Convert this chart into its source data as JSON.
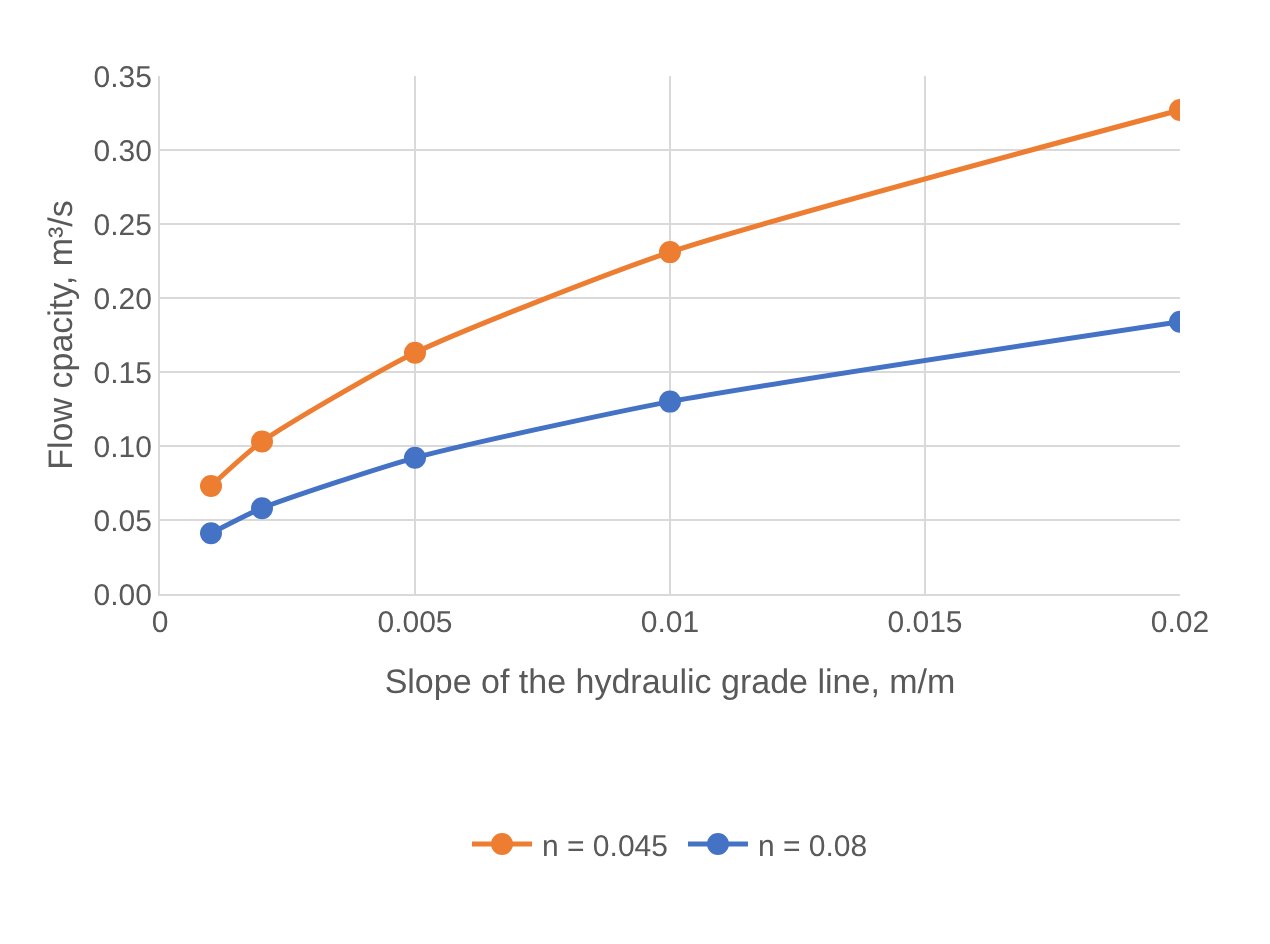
{
  "chart_data": {
    "type": "line",
    "xlabel": "Slope of the hydraulic grade line, m/m",
    "ylabel": "Flow cpacity, m³/s",
    "xlim": [
      0,
      0.02
    ],
    "xticks": [
      0,
      0.005,
      0.01,
      0.015,
      0.02
    ],
    "ylim": [
      0,
      0.35
    ],
    "yticks": [
      {
        "value": 0,
        "label": "0.00"
      },
      {
        "value": 0.05,
        "label": "0.05"
      },
      {
        "value": 0.1,
        "label": "0.10"
      },
      {
        "value": 0.15,
        "label": "0.15"
      },
      {
        "value": 0.2,
        "label": "0.20"
      },
      {
        "value": 0.25,
        "label": "0.25"
      },
      {
        "value": 0.3,
        "label": "0.30"
      },
      {
        "value": 0.35,
        "label": "0.35"
      }
    ],
    "x": [
      0.001,
      0.002,
      0.005,
      0.01,
      0.02
    ],
    "series": [
      {
        "name": "n = 0.045",
        "color": "#ed7d31",
        "values": [
          0.073,
          0.103,
          0.163,
          0.231,
          0.327
        ]
      },
      {
        "name": "n = 0.08",
        "color": "#4472c4",
        "values": [
          0.041,
          0.058,
          0.092,
          0.13,
          0.184
        ]
      }
    ],
    "grid": true,
    "legend": "bottom",
    "marker": "circle",
    "line_style": "solid"
  }
}
